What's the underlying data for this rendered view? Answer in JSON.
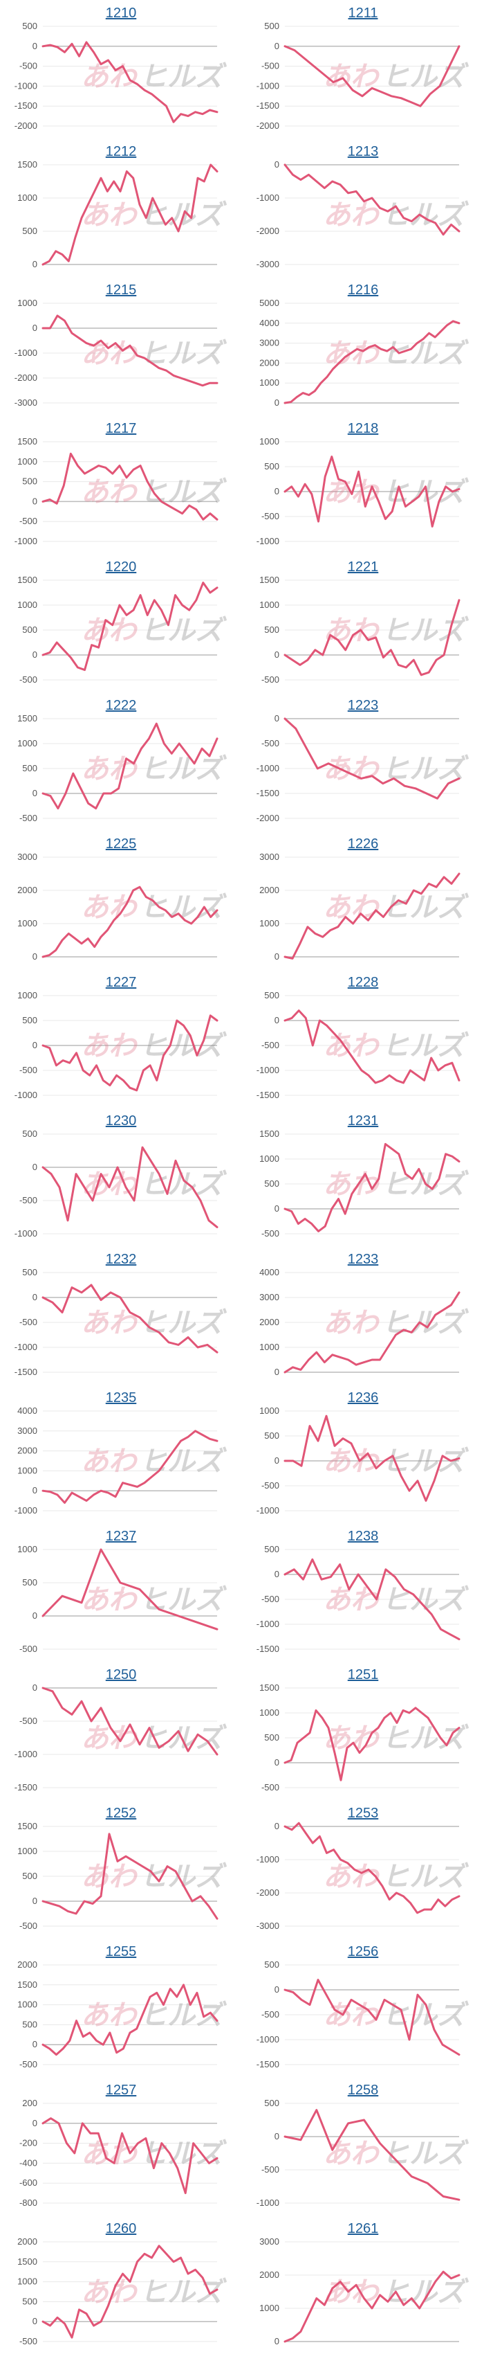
{
  "watermark": {
    "part1": "あわ",
    "part2": "ヒルズ"
  },
  "colors": {
    "line": "#e15576",
    "zero_line": "#bbbbbb",
    "grid": "#e8e8e8",
    "link": "#1f5f99"
  },
  "chart_data": [
    {
      "type": "line",
      "title": "1210",
      "yticks": [
        500,
        0,
        -500,
        -1000,
        -1500,
        -2000
      ],
      "ylim": [
        -2000,
        500
      ],
      "values": [
        0,
        30,
        -20,
        -150,
        60,
        -250,
        100,
        -150,
        -450,
        -350,
        -600,
        -500,
        -850,
        -950,
        -1100,
        -1200,
        -1350,
        -1500,
        -1900,
        -1700,
        -1750,
        -1650,
        -1700,
        -1600,
        -1650
      ]
    },
    {
      "type": "line",
      "title": "1211",
      "yticks": [
        500,
        0,
        -500,
        -1000,
        -1500,
        -2000
      ],
      "ylim": [
        -2000,
        500
      ],
      "values": [
        0,
        -100,
        -300,
        -500,
        -700,
        -900,
        -800,
        -1100,
        -1250,
        -1050,
        -1150,
        -1250,
        -1300,
        -1400,
        -1500,
        -1200,
        -1000,
        -500,
        0
      ]
    },
    {
      "type": "line",
      "title": "1212",
      "yticks": [
        1500,
        1000,
        500,
        0
      ],
      "ylim": [
        0,
        1500
      ],
      "values": [
        0,
        50,
        200,
        150,
        50,
        400,
        700,
        900,
        1100,
        1300,
        1100,
        1250,
        1100,
        1400,
        1300,
        900,
        700,
        1000,
        800,
        600,
        700,
        500,
        800,
        700,
        1300,
        1250,
        1500,
        1400
      ]
    },
    {
      "type": "line",
      "title": "1213",
      "yticks": [
        0,
        -1000,
        -2000,
        -3000
      ],
      "ylim": [
        -3000,
        0
      ],
      "values": [
        0,
        -300,
        -450,
        -300,
        -500,
        -700,
        -500,
        -600,
        -850,
        -800,
        -1100,
        -1000,
        -1300,
        -1400,
        -1250,
        -1600,
        -1700,
        -1500,
        -1650,
        -1750,
        -2100,
        -1800,
        -2000
      ]
    },
    {
      "type": "line",
      "title": "1215",
      "yticks": [
        1000,
        0,
        -1000,
        -2000,
        -3000
      ],
      "ylim": [
        -3000,
        1000
      ],
      "values": [
        0,
        0,
        500,
        300,
        -200,
        -400,
        -600,
        -700,
        -500,
        -800,
        -600,
        -900,
        -700,
        -1100,
        -1200,
        -1400,
        -1600,
        -1700,
        -1900,
        -2000,
        -2100,
        -2200,
        -2300,
        -2200,
        -2200
      ]
    },
    {
      "type": "line",
      "title": "1216",
      "yticks": [
        5000,
        4000,
        3000,
        2000,
        1000,
        0
      ],
      "ylim": [
        0,
        5000
      ],
      "values": [
        0,
        50,
        300,
        500,
        400,
        600,
        1000,
        1300,
        1700,
        2000,
        2300,
        2500,
        2700,
        2600,
        2800,
        2900,
        2700,
        2600,
        2800,
        2500,
        2600,
        2700,
        3000,
        3200,
        3500,
        3300,
        3600,
        3900,
        4100,
        4000
      ]
    },
    {
      "type": "line",
      "title": "1217",
      "yticks": [
        1500,
        1000,
        500,
        0,
        -500,
        -1000
      ],
      "ylim": [
        -1000,
        1500
      ],
      "values": [
        0,
        50,
        -50,
        400,
        1200,
        900,
        700,
        800,
        900,
        850,
        700,
        900,
        600,
        800,
        900,
        500,
        200,
        0,
        -100,
        -200,
        -300,
        -100,
        -200,
        -450,
        -300,
        -450
      ]
    },
    {
      "type": "line",
      "title": "1218",
      "yticks": [
        1000,
        500,
        0,
        -500,
        -1000
      ],
      "ylim": [
        -1000,
        1000
      ],
      "values": [
        0,
        100,
        -100,
        150,
        -50,
        -600,
        300,
        700,
        250,
        200,
        -50,
        400,
        -300,
        100,
        -200,
        -550,
        -400,
        100,
        -300,
        -200,
        -100,
        100,
        -700,
        -200,
        100,
        0,
        50
      ]
    },
    {
      "type": "line",
      "title": "1220",
      "yticks": [
        1500,
        1000,
        500,
        0,
        -500
      ],
      "ylim": [
        -500,
        1500
      ],
      "values": [
        0,
        50,
        250,
        100,
        -50,
        -250,
        -300,
        200,
        150,
        700,
        600,
        1000,
        800,
        900,
        1200,
        800,
        1100,
        900,
        600,
        1200,
        1000,
        900,
        1100,
        1450,
        1250,
        1350
      ]
    },
    {
      "type": "line",
      "title": "1221",
      "yticks": [
        1500,
        1000,
        500,
        0,
        -500
      ],
      "ylim": [
        -500,
        1500
      ],
      "values": [
        0,
        -100,
        -200,
        -100,
        100,
        0,
        400,
        300,
        100,
        400,
        500,
        300,
        350,
        -50,
        100,
        -200,
        -250,
        -100,
        -400,
        -350,
        -100,
        0,
        600,
        1100
      ]
    },
    {
      "type": "line",
      "title": "1222",
      "yticks": [
        1500,
        1000,
        500,
        0,
        -500
      ],
      "ylim": [
        -500,
        1500
      ],
      "values": [
        0,
        -50,
        -300,
        0,
        400,
        100,
        -200,
        -300,
        0,
        0,
        100,
        700,
        600,
        900,
        1100,
        1400,
        1000,
        800,
        1000,
        800,
        600,
        900,
        750,
        1100
      ]
    },
    {
      "type": "line",
      "title": "1223",
      "yticks": [
        0,
        -500,
        -1000,
        -1500,
        -2000
      ],
      "ylim": [
        -2000,
        0
      ],
      "values": [
        0,
        -200,
        -600,
        -1000,
        -900,
        -1000,
        -1100,
        -1200,
        -1150,
        -1300,
        -1200,
        -1350,
        -1400,
        -1500,
        -1600,
        -1300,
        -1200
      ]
    },
    {
      "type": "line",
      "title": "1225",
      "yticks": [
        3000,
        2000,
        1000,
        0
      ],
      "ylim": [
        0,
        3000
      ],
      "values": [
        0,
        50,
        200,
        500,
        700,
        550,
        400,
        550,
        300,
        600,
        800,
        1100,
        1300,
        1600,
        2000,
        2100,
        1800,
        1700,
        1500,
        1400,
        1200,
        1300,
        1100,
        1000,
        1200,
        1500,
        1200,
        1400
      ]
    },
    {
      "type": "line",
      "title": "1226",
      "yticks": [
        3000,
        2000,
        1000,
        0
      ],
      "ylim": [
        0,
        3000
      ],
      "values": [
        0,
        -50,
        400,
        900,
        700,
        600,
        800,
        900,
        1200,
        1000,
        1300,
        1100,
        1400,
        1200,
        1500,
        1700,
        1600,
        2000,
        1900,
        2200,
        2100,
        2400,
        2200,
        2500
      ]
    },
    {
      "type": "line",
      "title": "1227",
      "yticks": [
        1000,
        500,
        0,
        -500,
        -1000
      ],
      "ylim": [
        -1000,
        1000
      ],
      "values": [
        0,
        -50,
        -400,
        -300,
        -350,
        -150,
        -500,
        -600,
        -400,
        -700,
        -800,
        -600,
        -700,
        -850,
        -900,
        -500,
        -400,
        -700,
        -200,
        0,
        500,
        400,
        200,
        -200,
        100,
        600,
        500
      ]
    },
    {
      "type": "line",
      "title": "1228",
      "yticks": [
        500,
        0,
        -500,
        -1000,
        -1500
      ],
      "ylim": [
        -1500,
        500
      ],
      "values": [
        0,
        50,
        200,
        50,
        -500,
        0,
        -100,
        -250,
        -400,
        -600,
        -800,
        -1000,
        -1100,
        -1250,
        -1200,
        -1100,
        -1200,
        -1250,
        -1000,
        -1100,
        -1200,
        -750,
        -1000,
        -900,
        -850,
        -1200
      ]
    },
    {
      "type": "line",
      "title": "1230",
      "yticks": [
        500,
        0,
        -500,
        -1000
      ],
      "ylim": [
        -1000,
        500
      ],
      "values": [
        0,
        -100,
        -300,
        -800,
        -100,
        -300,
        -500,
        -100,
        -300,
        0,
        -300,
        -500,
        300,
        100,
        -100,
        -400,
        100,
        -200,
        -300,
        -500,
        -800,
        -900
      ]
    },
    {
      "type": "line",
      "title": "1231",
      "yticks": [
        1500,
        1000,
        500,
        0,
        -500
      ],
      "ylim": [
        -500,
        1500
      ],
      "values": [
        0,
        -50,
        -300,
        -200,
        -300,
        -450,
        -350,
        0,
        200,
        -100,
        300,
        500,
        700,
        400,
        600,
        1300,
        1200,
        1100,
        700,
        600,
        800,
        500,
        400,
        600,
        1100,
        1050,
        950
      ]
    },
    {
      "type": "line",
      "title": "1232",
      "yticks": [
        500,
        0,
        -500,
        -1000,
        -1500
      ],
      "ylim": [
        -1500,
        500
      ],
      "values": [
        0,
        -100,
        -300,
        200,
        100,
        250,
        -50,
        100,
        0,
        -300,
        -400,
        -600,
        -700,
        -900,
        -950,
        -800,
        -1000,
        -950,
        -1100
      ]
    },
    {
      "type": "line",
      "title": "1233",
      "yticks": [
        4000,
        3000,
        2000,
        1000,
        0
      ],
      "ylim": [
        0,
        4000
      ],
      "values": [
        0,
        200,
        100,
        500,
        800,
        400,
        700,
        600,
        500,
        300,
        400,
        500,
        500,
        1000,
        1500,
        1700,
        1600,
        2000,
        1800,
        2300,
        2500,
        2700,
        3200
      ]
    },
    {
      "type": "line",
      "title": "1235",
      "yticks": [
        4000,
        3000,
        2000,
        1000,
        0,
        -1000
      ],
      "ylim": [
        -1000,
        4000
      ],
      "values": [
        0,
        -50,
        -200,
        -600,
        -100,
        -300,
        -500,
        -200,
        0,
        -100,
        -300,
        400,
        300,
        200,
        400,
        700,
        1000,
        1500,
        2000,
        2500,
        2700,
        3000,
        2800,
        2600,
        2500
      ]
    },
    {
      "type": "line",
      "title": "1236",
      "yticks": [
        1000,
        500,
        0,
        -500,
        -1000
      ],
      "ylim": [
        -1000,
        1000
      ],
      "values": [
        0,
        0,
        -100,
        700,
        400,
        900,
        300,
        450,
        350,
        0,
        150,
        -150,
        0,
        100,
        -300,
        -600,
        -400,
        -800,
        -400,
        100,
        0,
        50
      ]
    },
    {
      "type": "line",
      "title": "1237",
      "yticks": [
        1000,
        500,
        0,
        -500
      ],
      "ylim": [
        -500,
        1000
      ],
      "values": [
        0,
        300,
        200,
        1000,
        500,
        400,
        100,
        0,
        -100,
        -200
      ]
    },
    {
      "type": "line",
      "title": "1238",
      "yticks": [
        500,
        0,
        -500,
        -1000,
        -1500
      ],
      "ylim": [
        -1500,
        500
      ],
      "values": [
        0,
        100,
        -100,
        300,
        -100,
        -50,
        200,
        -300,
        0,
        -250,
        -500,
        100,
        -50,
        -300,
        -400,
        -600,
        -800,
        -1100,
        -1200,
        -1300
      ]
    },
    {
      "type": "line",
      "title": "1250",
      "yticks": [
        0,
        -500,
        -1000,
        -1500
      ],
      "ylim": [
        -1500,
        0
      ],
      "values": [
        0,
        -50,
        -300,
        -400,
        -200,
        -500,
        -300,
        -600,
        -800,
        -550,
        -850,
        -600,
        -900,
        -800,
        -650,
        -950,
        -700,
        -800,
        -1000
      ]
    },
    {
      "type": "line",
      "title": "1251",
      "yticks": [
        1500,
        1000,
        500,
        0,
        -500
      ],
      "ylim": [
        -500,
        1500
      ],
      "values": [
        0,
        50,
        400,
        500,
        600,
        1050,
        900,
        700,
        200,
        -350,
        300,
        400,
        200,
        350,
        600,
        700,
        900,
        1000,
        800,
        1050,
        1000,
        1100,
        1000,
        900,
        700,
        500,
        350,
        600,
        700
      ]
    },
    {
      "type": "line",
      "title": "1252",
      "yticks": [
        1500,
        1000,
        500,
        0,
        -500
      ],
      "ylim": [
        -500,
        1500
      ],
      "values": [
        0,
        -50,
        -100,
        -200,
        -250,
        0,
        -50,
        100,
        1350,
        800,
        900,
        800,
        700,
        600,
        400,
        700,
        600,
        300,
        0,
        100,
        -100,
        -350
      ]
    },
    {
      "type": "line",
      "title": "1253",
      "yticks": [
        0,
        -1000,
        -2000,
        -3000
      ],
      "ylim": [
        -3000,
        0
      ],
      "values": [
        0,
        -100,
        100,
        -200,
        -500,
        -300,
        -800,
        -700,
        -1000,
        -1100,
        -1300,
        -1400,
        -1300,
        -1500,
        -1800,
        -2200,
        -2000,
        -2100,
        -2300,
        -2600,
        -2500,
        -2500,
        -2200,
        -2400,
        -2200,
        -2100
      ]
    },
    {
      "type": "line",
      "title": "1255",
      "yticks": [
        2000,
        1500,
        1000,
        500,
        0,
        -500
      ],
      "ylim": [
        -500,
        2000
      ],
      "values": [
        0,
        -100,
        -250,
        -100,
        100,
        600,
        200,
        300,
        100,
        0,
        300,
        -200,
        -100,
        300,
        400,
        800,
        1200,
        1300,
        1000,
        1400,
        1200,
        1500,
        1000,
        1300,
        700,
        800,
        600
      ]
    },
    {
      "type": "line",
      "title": "1256",
      "yticks": [
        500,
        0,
        -500,
        -1000,
        -1500
      ],
      "ylim": [
        -1500,
        500
      ],
      "values": [
        0,
        -50,
        -200,
        -300,
        200,
        -100,
        -400,
        -500,
        -200,
        -300,
        -400,
        -600,
        -200,
        -300,
        -400,
        -1000,
        -100,
        -300,
        -800,
        -1100,
        -1200,
        -1300
      ]
    },
    {
      "type": "line",
      "title": "1257",
      "yticks": [
        200,
        0,
        -200,
        -400,
        -600,
        -800
      ],
      "ylim": [
        -800,
        200
      ],
      "values": [
        0,
        50,
        0,
        -200,
        -300,
        0,
        -100,
        -100,
        -350,
        -400,
        -100,
        -300,
        -200,
        -150,
        -450,
        -200,
        -300,
        -450,
        -700,
        -200,
        -300,
        -400,
        -350
      ]
    },
    {
      "type": "line",
      "title": "1258",
      "yticks": [
        500,
        0,
        -500,
        -1000
      ],
      "ylim": [
        -1000,
        500
      ],
      "values": [
        0,
        -50,
        400,
        -200,
        200,
        250,
        -100,
        -350,
        -600,
        -700,
        -900,
        -950
      ]
    },
    {
      "type": "line",
      "title": "1260",
      "yticks": [
        2000,
        1500,
        1000,
        500,
        0,
        -500
      ],
      "ylim": [
        -500,
        2000
      ],
      "values": [
        0,
        -100,
        100,
        -50,
        -400,
        300,
        200,
        -100,
        0,
        400,
        900,
        1200,
        1000,
        1500,
        1700,
        1600,
        1900,
        1700,
        1500,
        1600,
        1200,
        1300,
        1100,
        700,
        800
      ]
    },
    {
      "type": "line",
      "title": "1261",
      "yticks": [
        3000,
        2000,
        1000,
        0
      ],
      "ylim": [
        0,
        3000
      ],
      "values": [
        0,
        100,
        300,
        800,
        1300,
        1100,
        1600,
        1800,
        1500,
        1700,
        1300,
        1000,
        1400,
        1200,
        1500,
        1100,
        1300,
        1000,
        1400,
        1800,
        2100,
        1900,
        2000
      ]
    }
  ]
}
